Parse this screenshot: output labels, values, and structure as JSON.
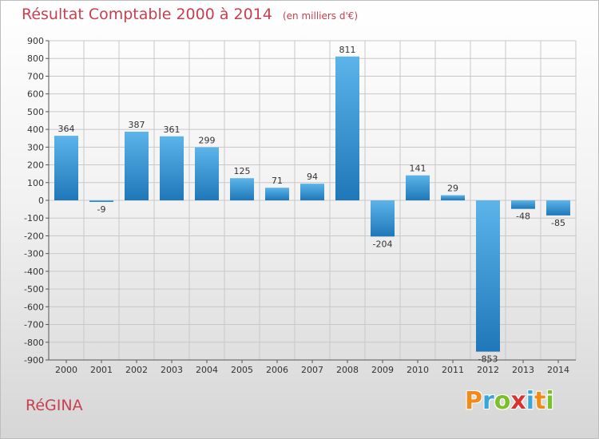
{
  "header": {
    "title": "Résultat Comptable 2000 à 2014",
    "subtitle": "(en milliers d'€)"
  },
  "commune": "RéGINA",
  "logo": {
    "text": "Proxiti",
    "letters": [
      {
        "ch": "P",
        "color": "#f08a1a"
      },
      {
        "ch": "r",
        "color": "#3aa5d8"
      },
      {
        "ch": "o",
        "color": "#7bbf2a"
      },
      {
        "ch": "x",
        "color": "#d8342f"
      },
      {
        "ch": "i",
        "color": "#3aa5d8"
      },
      {
        "ch": "t",
        "color": "#f08a1a"
      },
      {
        "ch": "i",
        "color": "#7bbf2a"
      }
    ]
  },
  "colors": {
    "bar_light": "#5cb4ea",
    "bar_dark": "#1f77b8",
    "title": "#c8404f",
    "grid": "#c8c8c8"
  },
  "chart_data": {
    "type": "bar",
    "title": "Résultat Comptable 2000 à 2014",
    "subtitle": "(en milliers d'€)",
    "categories": [
      "2000",
      "2001",
      "2002",
      "2003",
      "2004",
      "2005",
      "2006",
      "2007",
      "2008",
      "2009",
      "2010",
      "2011",
      "2012",
      "2013",
      "2014"
    ],
    "values": [
      364,
      -9,
      387,
      361,
      299,
      125,
      71,
      94,
      811,
      -204,
      141,
      29,
      -853,
      -48,
      -85
    ],
    "ylim": [
      -900,
      900
    ],
    "yticks": [
      900,
      800,
      700,
      600,
      500,
      400,
      300,
      200,
      100,
      0,
      -100,
      -200,
      -300,
      -400,
      -500,
      -600,
      -700,
      -800,
      -900
    ],
    "grid": true,
    "xlabel": "",
    "ylabel": ""
  }
}
